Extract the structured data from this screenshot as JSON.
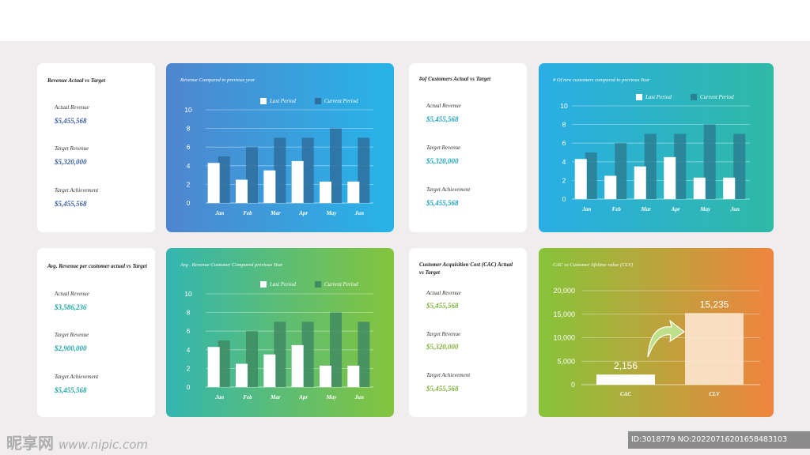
{
  "kpi_cards": [
    {
      "title": "Revenue Actual vs Target",
      "actual_label": "Actual Revenue",
      "actual_value": "$5,455,568",
      "target_label": "Target Revenue",
      "target_value": "$5,320,000",
      "ach_label": "Target Achievement",
      "ach_value": "$5,455,568",
      "value_color": "#3b5fa8"
    },
    {
      "title": "#of Customers Actual vs Target",
      "actual_label": "Actual Revenue",
      "actual_value": "$5,455,568",
      "target_label": "Target Revenue",
      "target_value": "$5,320,000",
      "ach_label": "Target Achievement",
      "ach_value": "$5,455,568",
      "value_color": "#1fa6c2"
    },
    {
      "title": "Avg. Revenue per customer actual vs Target",
      "actual_label": "Actual Revenue",
      "actual_value": "$3,586,236",
      "target_label": "Target Revenue",
      "target_value": "$2,900,000",
      "ach_label": "Target Achievement",
      "ach_value": "$5,455,568",
      "value_color": "#1fa6a6"
    },
    {
      "title": "Customer Acquisition Cost (CAC) Actual vs Target",
      "actual_label": "Actual Revenue",
      "actual_value": "$5,455,568",
      "target_label": "Target Revenue",
      "target_value": "$5,320,000",
      "ach_label": "Target Achievement",
      "ach_value": "$5,455,568",
      "value_color": "#7fb33a"
    }
  ],
  "chart_panels": [
    {
      "title": "Revenue Compared to previous year",
      "legend_last": "Last Period",
      "legend_current": "Current Period",
      "grad_from": "#4f86cf",
      "grad_to": "#27b4e8",
      "current_color": "#2f6f9e"
    },
    {
      "title": "# Of new customers compared to previous Year",
      "legend_last": "Last Period",
      "legend_current": "Current Period",
      "grad_from": "#2aaee6",
      "grad_to": "#2fb9a6",
      "current_color": "#2a7f93"
    },
    {
      "title": "Avg . Revenue Customer Compared previous Year",
      "legend_last": "Last Period",
      "legend_current": "Current Period",
      "grad_from": "#33b6b0",
      "grad_to": "#84c43c",
      "current_color": "#3f8b63"
    },
    {
      "title": "CAC vs Customer lifetime value (CLV)",
      "grad_from": "#86c43a",
      "grad_to": "#f0843e"
    }
  ],
  "chart_data": [
    {
      "type": "bar",
      "categories": [
        "Jan",
        "Feb",
        "Mar",
        "Apr",
        "May",
        "Jun"
      ],
      "series": [
        {
          "name": "Last Period",
          "values": [
            4.3,
            2.5,
            3.5,
            4.5,
            2.3,
            2.3
          ]
        },
        {
          "name": "Current Period",
          "values": [
            5,
            6,
            7,
            7,
            8,
            7
          ]
        }
      ],
      "ylim": [
        0,
        10
      ],
      "yticks": [
        "0",
        "2",
        "4",
        "6",
        "8",
        "10"
      ],
      "grid": true,
      "legend": "top-right"
    },
    {
      "type": "bar",
      "categories": [
        "Jan",
        "Feb",
        "Mar",
        "Apr",
        "May",
        "Jun"
      ],
      "series": [
        {
          "name": "Last Period",
          "values": [
            4.3,
            2.5,
            3.5,
            4.5,
            2.3,
            2.3
          ]
        },
        {
          "name": "Current Period",
          "values": [
            5,
            6,
            7,
            7,
            8,
            7
          ]
        }
      ],
      "ylim": [
        0,
        10
      ],
      "yticks": [
        "0",
        "2",
        "4",
        "6",
        "8",
        "10"
      ],
      "grid": true,
      "legend": "top-right"
    },
    {
      "type": "bar",
      "categories": [
        "Jan",
        "Feb",
        "Mar",
        "Apr",
        "May",
        "Jun"
      ],
      "series": [
        {
          "name": "Last Period",
          "values": [
            4.3,
            2.5,
            3.5,
            4.5,
            2.3,
            2.3
          ]
        },
        {
          "name": "Current Period",
          "values": [
            5,
            6,
            7,
            7,
            8,
            7
          ]
        }
      ],
      "ylim": [
        0,
        10
      ],
      "yticks": [
        "0",
        "2",
        "4",
        "6",
        "8",
        "10"
      ],
      "grid": true,
      "legend": "top-right"
    },
    {
      "type": "bar",
      "categories": [
        "CAC",
        "CLV"
      ],
      "values": [
        2156,
        15235
      ],
      "data_labels": [
        "2,156",
        "15,235"
      ],
      "ylim": [
        0,
        20000
      ],
      "yticks": [
        "0",
        "5,000",
        "10,000",
        "15,000",
        "20,000"
      ],
      "grid": true
    }
  ],
  "watermark": {
    "text": "昵享网",
    "url": "www.nipic.com"
  },
  "id_bar": "ID:3018779 NO:20220716201658483103"
}
